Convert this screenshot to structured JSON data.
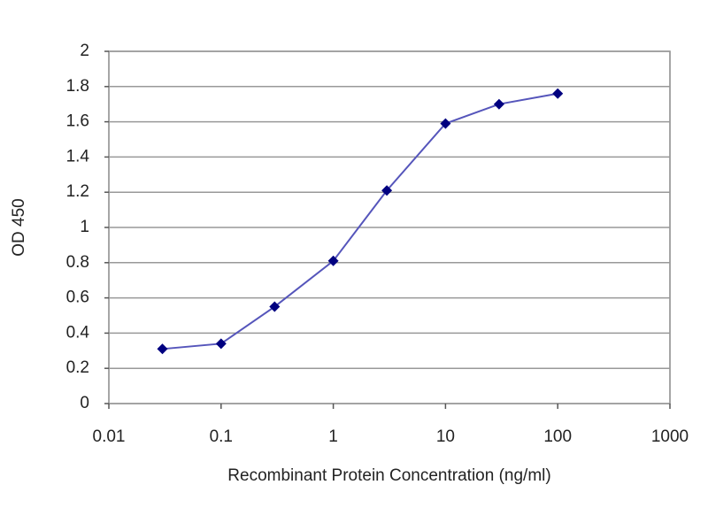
{
  "chart_data": {
    "type": "line",
    "x_label": "Recombinant Protein Concentration (ng/ml)",
    "y_label": "OD 450",
    "x_scale": "log",
    "xlim": [
      0.01,
      1000
    ],
    "xticks": [
      0.01,
      0.1,
      1,
      10,
      100,
      1000
    ],
    "ylim": [
      0,
      2
    ],
    "yticks": [
      0,
      0.2,
      0.4,
      0.6,
      0.8,
      1,
      1.2,
      1.4,
      1.6,
      1.8,
      2
    ],
    "grid": true,
    "x": [
      0.03,
      0.1,
      0.3,
      1,
      3,
      10,
      30,
      100
    ],
    "series": [
      {
        "name": "OD 450",
        "color": "#000080",
        "line_color": "#5555bb",
        "values": [
          0.31,
          0.34,
          0.55,
          0.81,
          1.21,
          1.59,
          1.7,
          1.76
        ]
      }
    ]
  }
}
